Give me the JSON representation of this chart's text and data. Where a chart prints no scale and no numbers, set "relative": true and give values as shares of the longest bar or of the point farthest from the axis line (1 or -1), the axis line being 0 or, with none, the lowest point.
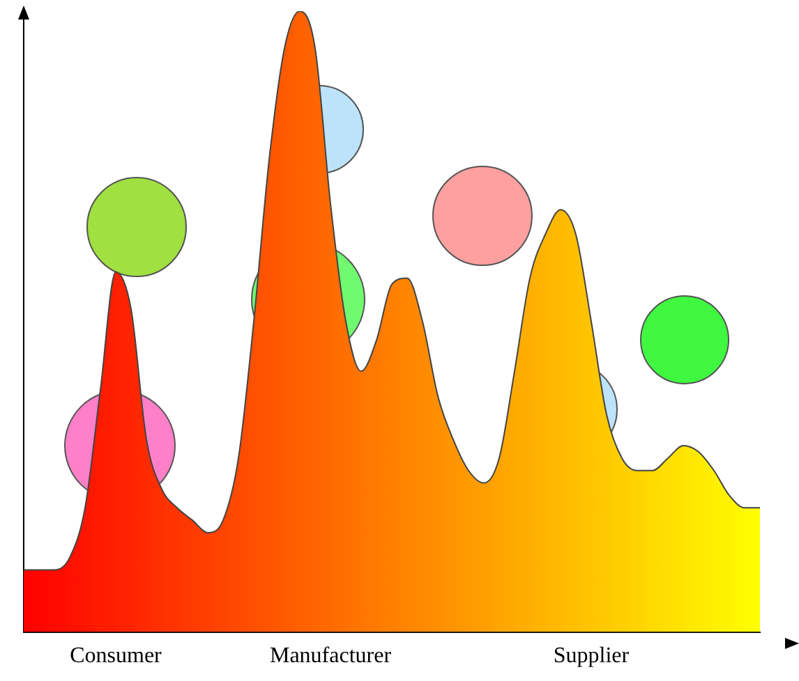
{
  "chart_data": {
    "type": "area",
    "relative": true,
    "legend": false,
    "grid": false,
    "tick_labels": "x",
    "categories": [
      null,
      null,
      null,
      null,
      null,
      null,
      "Consumer",
      null,
      null,
      null,
      null,
      null,
      null,
      null,
      null,
      null,
      null,
      null,
      null,
      null,
      "Manufacturer",
      null,
      null,
      null,
      null,
      null,
      null,
      null,
      null,
      null,
      null,
      null,
      null,
      null,
      null,
      null,
      null,
      "Supplier",
      null,
      null,
      null,
      null,
      null,
      null,
      null,
      null,
      null,
      null,
      null
    ],
    "series": [
      {
        "values": [
          0.1,
          0.1,
          0.1,
          0.12,
          0.2,
          0.39,
          0.58,
          0.52,
          0.31,
          0.23,
          0.2,
          0.18,
          0.16,
          0.18,
          0.28,
          0.5,
          0.76,
          0.94,
          1,
          0.94,
          0.69,
          0.5,
          0.42,
          0.47,
          0.56,
          0.57,
          0.5,
          0.38,
          0.31,
          0.26,
          0.24,
          0.28,
          0.42,
          0.57,
          0.64,
          0.68,
          0.64,
          0.5,
          0.35,
          0.28,
          0.26,
          0.26,
          0.28,
          0.3,
          0.29,
          0.26,
          0.22,
          0.2,
          0.2
        ],
        "colors": [
          "#ff0000",
          "#ff0500",
          "#ff0b00",
          "#ff1000",
          "#ff1500",
          "#ff1b00",
          "#ff2000",
          "#ff2500",
          "#ff2b00",
          "#ff3000",
          "#ff3500",
          "#ff3a00",
          "#ff4000",
          "#ff4500",
          "#ff4a00",
          "#ff5000",
          "#ff5500",
          "#ff5a00",
          "#ff6000",
          "#ff6500",
          "#ff6a00",
          "#ff7000",
          "#ff7500",
          "#ff7a00",
          "#ff8000",
          "#ff8500",
          "#ff8a00",
          "#ff8f00",
          "#ff9500",
          "#ff9a00",
          "#ff9f00",
          "#ffa500",
          "#ffaa00",
          "#ffaf00",
          "#ffb500",
          "#ffba00",
          "#ffbf00",
          "#ffc400",
          "#ffca00",
          "#ffcf00",
          "#ffd400",
          "#ffda00",
          "#ffdf00",
          "#ffe400",
          "#ffea00",
          "#ffef00",
          "#fff400",
          "#fffa00",
          "#ffff00"
        ]
      }
    ]
  }
}
